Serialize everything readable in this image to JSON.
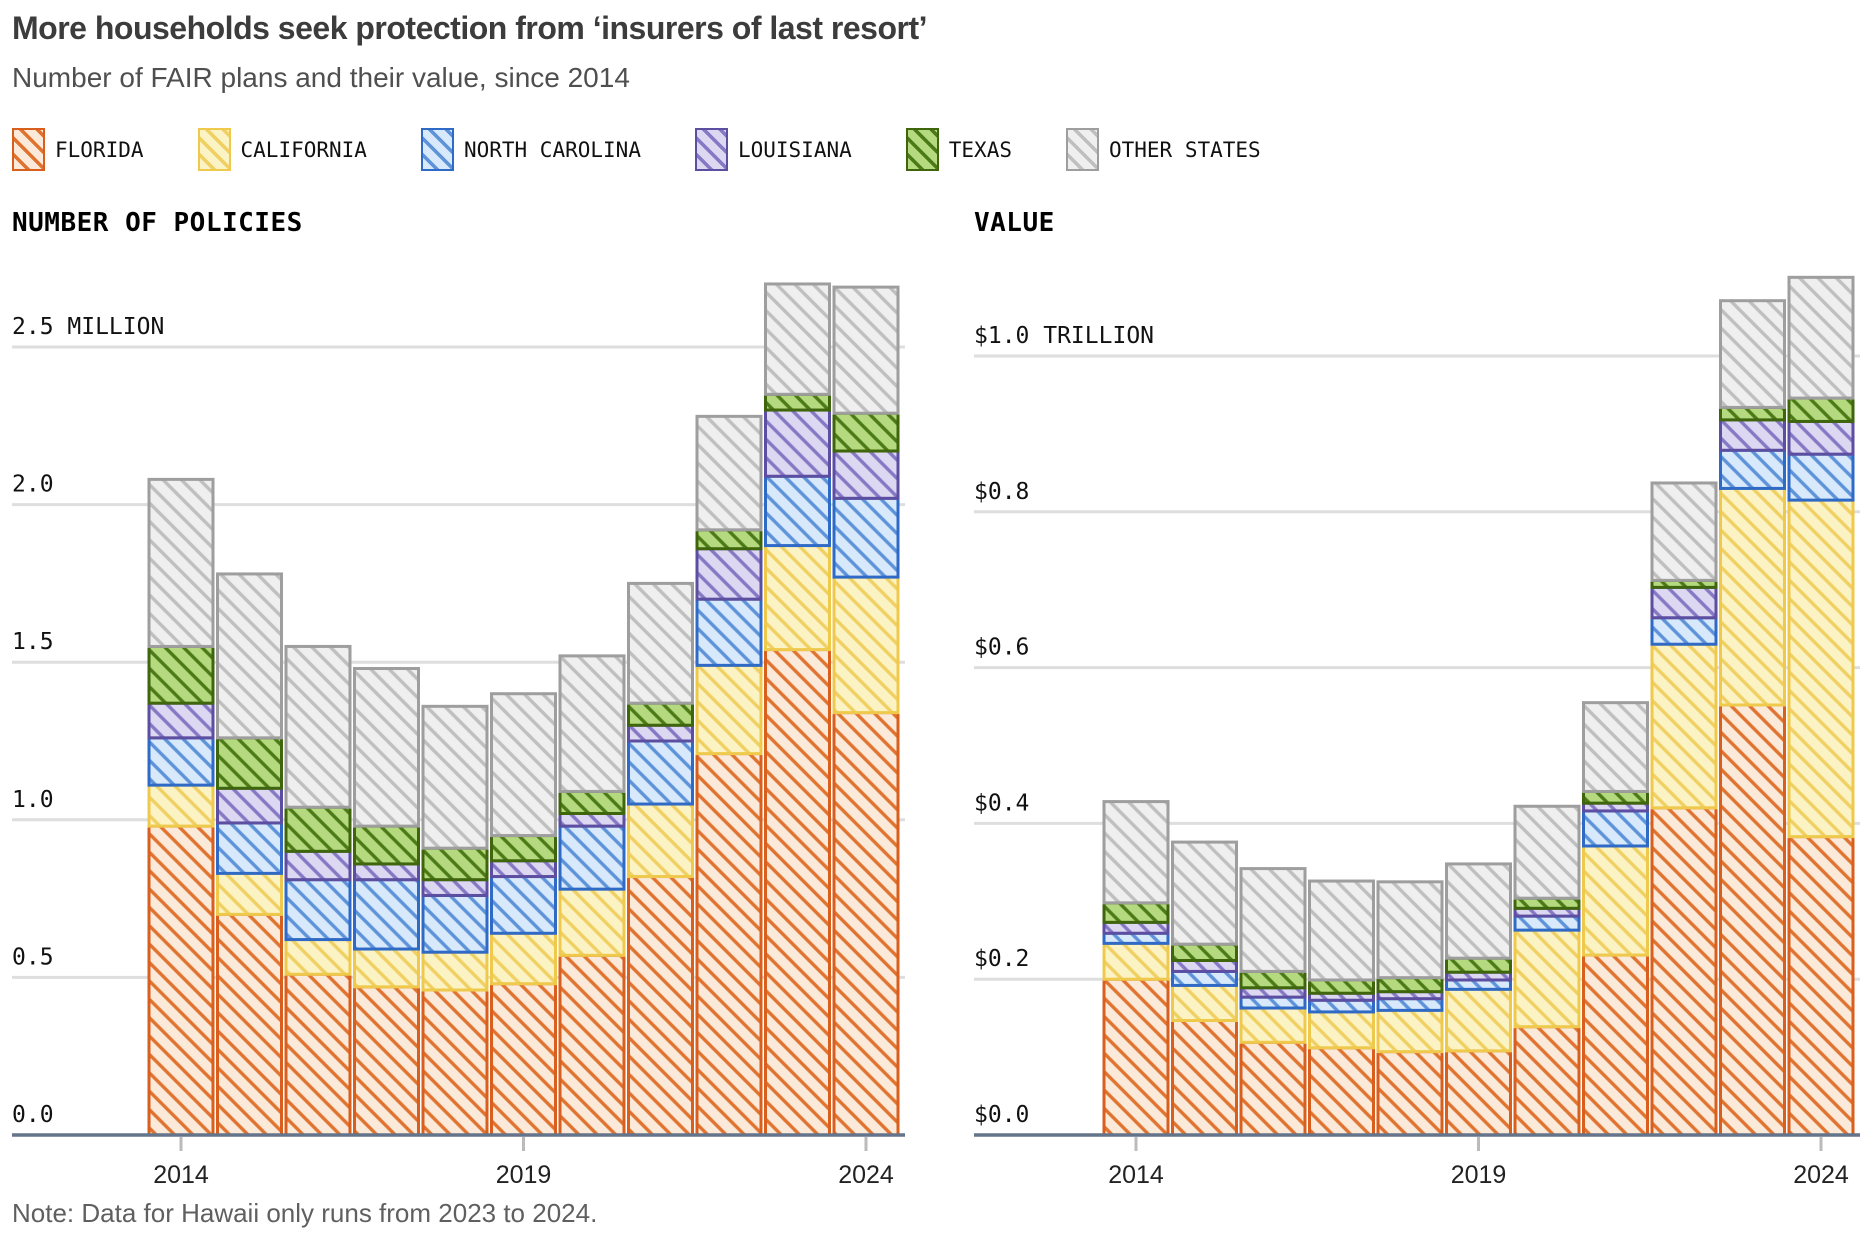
{
  "header": {
    "title": "More households seek protection from ‘insurers of last resort’",
    "subtitle": "Number of FAIR plans and their value, since 2014"
  },
  "note": "Note: Data for Hawaii only runs from 2023 to 2024.",
  "palette": {
    "florida": {
      "border": "#D95F1E",
      "hatch": "#E0732F",
      "fill": "#FBEADA"
    },
    "california": {
      "border": "#EFC94C",
      "hatch": "#F0D063",
      "fill": "#FCF3C4"
    },
    "north_carolina": {
      "border": "#2F6BC6",
      "hatch": "#5E93DA",
      "fill": "#D7E9FA"
    },
    "louisiana": {
      "border": "#5C4EA0",
      "hatch": "#8678C4",
      "fill": "#DDD8F1"
    },
    "texas": {
      "border": "#3F660D",
      "hatch": "#4C7A17",
      "fill": "#B4D97E"
    },
    "other_states": {
      "border": "#9E9E9E",
      "hatch": "#BFBFBF",
      "fill": "#EFEFEF"
    }
  },
  "legend": [
    {
      "key": "florida",
      "label": "FLORIDA"
    },
    {
      "key": "california",
      "label": "CALIFORNIA"
    },
    {
      "key": "north_carolina",
      "label": "NORTH CAROLINA"
    },
    {
      "key": "louisiana",
      "label": "LOUISIANA"
    },
    {
      "key": "texas",
      "label": "TEXAS"
    },
    {
      "key": "other_states",
      "label": "OTHER STATES"
    }
  ],
  "chart_data": [
    {
      "type": "bar",
      "stacked": true,
      "title": "NUMBER OF POLICIES",
      "unit": "MILLION",
      "categories": [
        2014,
        2015,
        2016,
        2017,
        2018,
        2019,
        2020,
        2021,
        2022,
        2023,
        2024
      ],
      "x_tick_labels": [
        "2014",
        "2019",
        "2024"
      ],
      "x_tick_years": [
        2014,
        2019,
        2024
      ],
      "ylim": [
        0,
        2.5
      ],
      "grid": true,
      "legend_position": "top",
      "y_ticks": [
        {
          "value": 0.0,
          "label": "0.0"
        },
        {
          "value": 0.5,
          "label": "0.5"
        },
        {
          "value": 1.0,
          "label": "1.0"
        },
        {
          "value": 1.5,
          "label": "1.5"
        },
        {
          "value": 2.0,
          "label": "2.0"
        },
        {
          "value": 2.5,
          "label": "2.5 MILLION"
        }
      ],
      "series": [
        {
          "key": "florida",
          "name": "FLORIDA",
          "values": [
            0.98,
            0.7,
            0.51,
            0.47,
            0.46,
            0.48,
            0.57,
            0.82,
            1.21,
            1.54,
            1.34
          ]
        },
        {
          "key": "california",
          "name": "CALIFORNIA",
          "values": [
            0.13,
            0.13,
            0.11,
            0.12,
            0.12,
            0.16,
            0.21,
            0.23,
            0.28,
            0.33,
            0.43
          ]
        },
        {
          "key": "north_carolina",
          "name": "NORTH CAROLINA",
          "values": [
            0.15,
            0.16,
            0.19,
            0.22,
            0.18,
            0.18,
            0.2,
            0.2,
            0.21,
            0.22,
            0.25
          ]
        },
        {
          "key": "louisiana",
          "name": "LOUISIANA",
          "values": [
            0.11,
            0.11,
            0.09,
            0.05,
            0.05,
            0.05,
            0.04,
            0.05,
            0.16,
            0.21,
            0.15
          ]
        },
        {
          "key": "texas",
          "name": "TEXAS",
          "values": [
            0.18,
            0.16,
            0.14,
            0.12,
            0.1,
            0.08,
            0.07,
            0.07,
            0.06,
            0.05,
            0.12
          ]
        },
        {
          "key": "other_states",
          "name": "OTHER STATES",
          "values": [
            0.53,
            0.52,
            0.51,
            0.5,
            0.45,
            0.45,
            0.43,
            0.38,
            0.36,
            0.35,
            0.4
          ]
        }
      ]
    },
    {
      "type": "bar",
      "stacked": true,
      "title": "VALUE",
      "unit": "TRILLION",
      "categories": [
        2014,
        2015,
        2016,
        2017,
        2018,
        2019,
        2020,
        2021,
        2022,
        2023,
        2024
      ],
      "x_tick_labels": [
        "2014",
        "2019",
        "2024"
      ],
      "x_tick_years": [
        2014,
        2019,
        2024
      ],
      "ylim": [
        0,
        1.0
      ],
      "grid": true,
      "legend_position": "top",
      "y_ticks": [
        {
          "value": 0.0,
          "label": "$0.0"
        },
        {
          "value": 0.2,
          "label": "$0.2"
        },
        {
          "value": 0.4,
          "label": "$0.4"
        },
        {
          "value": 0.6,
          "label": "$0.6"
        },
        {
          "value": 0.8,
          "label": "$0.8"
        },
        {
          "value": 1.0,
          "label": "$1.0 TRILLION"
        }
      ],
      "series": [
        {
          "key": "florida",
          "name": "FLORIDA",
          "values": [
            0.2,
            0.147,
            0.119,
            0.112,
            0.107,
            0.108,
            0.139,
            0.231,
            0.42,
            0.552,
            0.383
          ]
        },
        {
          "key": "california",
          "name": "CALIFORNIA",
          "values": [
            0.046,
            0.045,
            0.044,
            0.046,
            0.053,
            0.079,
            0.124,
            0.14,
            0.21,
            0.278,
            0.432
          ]
        },
        {
          "key": "north_carolina",
          "name": "NORTH CAROLINA",
          "values": [
            0.013,
            0.018,
            0.014,
            0.015,
            0.015,
            0.012,
            0.018,
            0.045,
            0.034,
            0.049,
            0.059
          ]
        },
        {
          "key": "louisiana",
          "name": "LOUISIANA",
          "values": [
            0.014,
            0.014,
            0.012,
            0.009,
            0.009,
            0.01,
            0.01,
            0.01,
            0.039,
            0.039,
            0.042
          ]
        },
        {
          "key": "texas",
          "name": "TEXAS",
          "values": [
            0.025,
            0.021,
            0.021,
            0.017,
            0.018,
            0.018,
            0.013,
            0.015,
            0.009,
            0.016,
            0.03
          ]
        },
        {
          "key": "other_states",
          "name": "OTHER STATES",
          "values": [
            0.13,
            0.131,
            0.132,
            0.127,
            0.123,
            0.121,
            0.118,
            0.114,
            0.125,
            0.137,
            0.155
          ]
        }
      ]
    }
  ]
}
